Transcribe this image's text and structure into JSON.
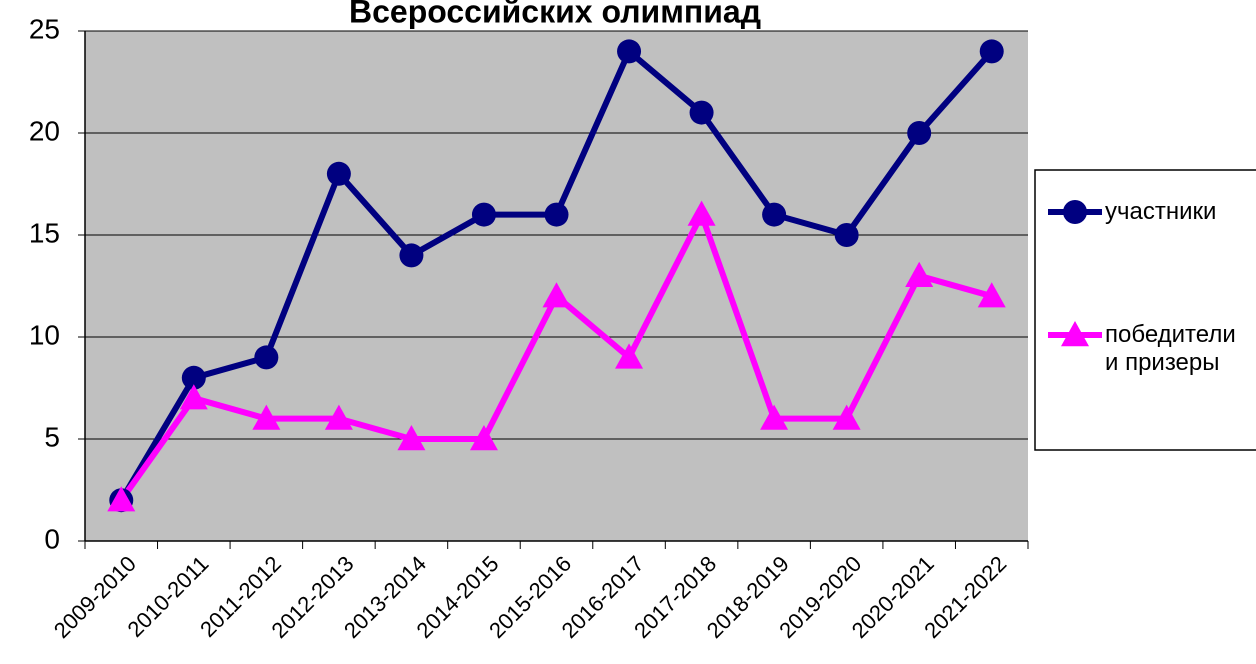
{
  "chart_data": {
    "type": "line",
    "title": "Всероссийских олимпиад",
    "categories": [
      "2009-2010",
      "2010-2011",
      "2011-2012",
      "2012-2013",
      "2013-2014",
      "2014-2015",
      "2015-2016",
      "2016-2017",
      "2017-2018",
      "2018-2019",
      "2019-2020",
      "2020-2021",
      "2021-2022"
    ],
    "series": [
      {
        "name": "участники",
        "color": "#000080",
        "marker": "circle",
        "values": [
          2,
          8,
          9,
          18,
          14,
          16,
          16,
          24,
          21,
          16,
          15,
          20,
          24
        ]
      },
      {
        "name": "победители и призеры",
        "color": "#ff00ff",
        "marker": "triangle",
        "values": [
          2,
          7,
          6,
          6,
          5,
          5,
          12,
          9,
          16,
          6,
          6,
          13,
          12
        ]
      }
    ],
    "ylim": [
      0,
      25
    ],
    "yticks": [
      0,
      5,
      10,
      15,
      20,
      25
    ],
    "grid": true,
    "legend": "right"
  }
}
